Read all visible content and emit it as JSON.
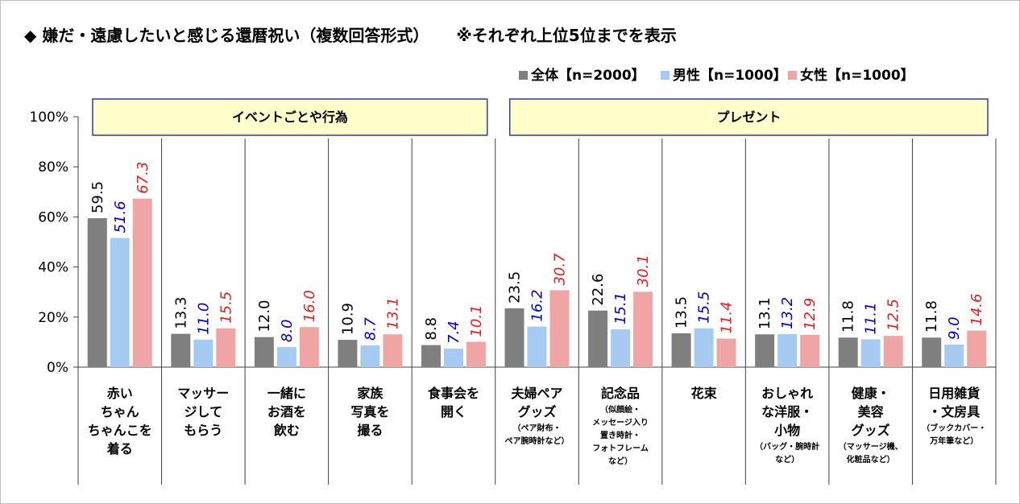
{
  "chart_data": {
    "type": "bar",
    "title": "◆ 嫌だ・遠慮したいと感じる還暦祝い（複数回答形式）",
    "subtitle": "※それぞれ上位5位までを表示",
    "yticks": [
      "100%",
      "80%",
      "60%",
      "40%",
      "20%",
      "0%"
    ],
    "ylim": [
      0,
      100
    ],
    "grid": false,
    "legend_position": "top-right",
    "groups": [
      {
        "label": "イベントごとや行為",
        "start": 0,
        "end": 4
      },
      {
        "label": "プレゼント",
        "start": 5,
        "end": 10
      }
    ],
    "categories": [
      {
        "lines": [
          "赤い",
          "ちゃん",
          "ちゃんこを",
          "着る"
        ],
        "note": []
      },
      {
        "lines": [
          "マッサー",
          "ジして",
          "もらう"
        ],
        "note": []
      },
      {
        "lines": [
          "一緒に",
          "お酒を",
          "飲む"
        ],
        "note": []
      },
      {
        "lines": [
          "家族",
          "写真を",
          "撮る"
        ],
        "note": []
      },
      {
        "lines": [
          "食事会を",
          "開く"
        ],
        "note": []
      },
      {
        "lines": [
          "夫婦ペア",
          "グッズ"
        ],
        "note": [
          "（ペア財布・",
          "ペア腕時計など）"
        ]
      },
      {
        "lines": [
          "記念品"
        ],
        "note": [
          "（似顔絵・",
          "メッセージ入り",
          "置き時計・",
          "フォトフレーム",
          "など）"
        ]
      },
      {
        "lines": [
          "花束"
        ],
        "note": []
      },
      {
        "lines": [
          "おしゃれ",
          "な洋服・",
          "小物"
        ],
        "note": [
          "（バッグ・腕時計",
          "など）"
        ]
      },
      {
        "lines": [
          "健康・",
          "美容",
          "グッズ"
        ],
        "note": [
          "（マッサージ機、",
          "化粧品など）"
        ]
      },
      {
        "lines": [
          "日用雑貨",
          "・文房具"
        ],
        "note": [
          "（ブックカバー・",
          "万年筆など）"
        ]
      }
    ],
    "series": [
      {
        "name": "全体【n=2000】",
        "color": "#7f7f7f",
        "label_color": "#000000",
        "values": [
          59.5,
          13.3,
          12.0,
          10.9,
          8.8,
          23.5,
          22.6,
          13.5,
          13.1,
          11.8,
          11.8
        ],
        "labels": [
          "59.5",
          "13.3",
          "12.0",
          "10.9",
          "8.8",
          "23.5",
          "22.6",
          "13.5",
          "13.1",
          "11.8",
          "11.8"
        ]
      },
      {
        "name": "男性【n=1000】",
        "color": "#a6cbf3",
        "label_color": "#0000cc",
        "values": [
          51.6,
          11.0,
          8.0,
          8.7,
          7.4,
          16.2,
          15.1,
          15.5,
          13.2,
          11.1,
          9.0
        ],
        "labels": [
          "51.6",
          "11.0",
          "8.0",
          "8.7",
          "7.4",
          "16.2",
          "15.1",
          "15.5",
          "13.2",
          "11.1",
          "9.0"
        ]
      },
      {
        "name": "女性【n=1000】",
        "color": "#f0a5a5",
        "label_color": "#e0201d",
        "values": [
          67.3,
          15.5,
          16.0,
          13.1,
          10.1,
          30.7,
          30.1,
          11.4,
          12.9,
          12.5,
          14.6
        ],
        "labels": [
          "67.3",
          "15.5",
          "16.0",
          "13.1",
          "10.1",
          "30.7",
          "30.1",
          "11.4",
          "12.9",
          "12.5",
          "14.6"
        ]
      }
    ],
    "colors": {
      "group_box_fill": "#ffffcc",
      "group_box_border": "#2f3f8f"
    }
  }
}
